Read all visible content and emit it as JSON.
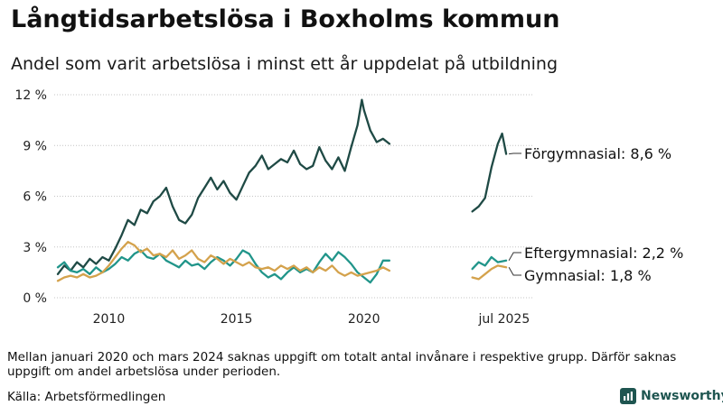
{
  "title": "Långtidsarbetslösa i Boxholms kommun",
  "subtitle": "Andel som varit arbetslösa i minst ett år uppdelat på utbildning",
  "footnote": "Mellan januari 2020 och mars 2024 saknas uppgift om totalt antal invånare i respektive grupp. Därför saknas uppgift om andel arbetslösa under perioden.",
  "source": "Källa: Arbetsförmedlingen",
  "brand": "Newsworthy",
  "colors": {
    "forgymnasial": "#1f4a45",
    "eftergymnasial": "#21958a",
    "gymnasial": "#d4a24c",
    "grid": "#c4c4c4",
    "brand": "#1e5550"
  },
  "chart_data": {
    "type": "line",
    "xlim": [
      2008.0,
      2026.0
    ],
    "ylim": [
      0,
      12
    ],
    "y_ticks": [
      0,
      3,
      6,
      9,
      12
    ],
    "y_tick_labels": [
      "0 %",
      "3 %",
      "6 %",
      "9 %",
      "12 %"
    ],
    "x_ticks": [
      2010,
      2015,
      2020,
      2025.5
    ],
    "x_tick_labels": [
      "2010",
      "2015",
      "2020",
      "jul 2025"
    ],
    "grid": true,
    "legend": "direct labels at right",
    "series": [
      {
        "key": "forgymnasial",
        "label": "Förgymnasial: 8,6 %",
        "segments": [
          [
            [
              2008.0,
              1.4
            ],
            [
              2008.25,
              1.9
            ],
            [
              2008.5,
              1.6
            ],
            [
              2008.75,
              2.1
            ],
            [
              2009.0,
              1.8
            ],
            [
              2009.25,
              2.3
            ],
            [
              2009.5,
              2.0
            ],
            [
              2009.75,
              2.4
            ],
            [
              2010.0,
              2.2
            ],
            [
              2010.25,
              2.9
            ],
            [
              2010.5,
              3.7
            ],
            [
              2010.75,
              4.6
            ],
            [
              2011.0,
              4.3
            ],
            [
              2011.25,
              5.2
            ],
            [
              2011.5,
              5.0
            ],
            [
              2011.75,
              5.7
            ],
            [
              2012.0,
              6.0
            ],
            [
              2012.25,
              6.5
            ],
            [
              2012.5,
              5.4
            ],
            [
              2012.75,
              4.6
            ],
            [
              2013.0,
              4.4
            ],
            [
              2013.25,
              4.9
            ],
            [
              2013.5,
              5.9
            ],
            [
              2013.75,
              6.5
            ],
            [
              2014.0,
              7.1
            ],
            [
              2014.25,
              6.4
            ],
            [
              2014.5,
              6.9
            ],
            [
              2014.75,
              6.2
            ],
            [
              2015.0,
              5.8
            ],
            [
              2015.25,
              6.6
            ],
            [
              2015.5,
              7.4
            ],
            [
              2015.75,
              7.8
            ],
            [
              2016.0,
              8.4
            ],
            [
              2016.25,
              7.6
            ],
            [
              2016.5,
              7.9
            ],
            [
              2016.75,
              8.2
            ],
            [
              2017.0,
              8.0
            ],
            [
              2017.25,
              8.7
            ],
            [
              2017.5,
              7.9
            ],
            [
              2017.75,
              7.6
            ],
            [
              2018.0,
              7.8
            ],
            [
              2018.25,
              8.9
            ],
            [
              2018.5,
              8.1
            ],
            [
              2018.75,
              7.6
            ],
            [
              2019.0,
              8.3
            ],
            [
              2019.25,
              7.5
            ],
            [
              2019.5,
              8.9
            ],
            [
              2019.75,
              10.2
            ],
            [
              2019.92,
              11.7
            ],
            [
              2020.0,
              11.1
            ],
            [
              2020.25,
              9.9
            ],
            [
              2020.5,
              9.2
            ],
            [
              2020.75,
              9.4
            ],
            [
              2021.0,
              9.1
            ]
          ],
          [
            [
              2024.25,
              5.1
            ],
            [
              2024.5,
              5.4
            ],
            [
              2024.75,
              5.9
            ],
            [
              2025.0,
              7.7
            ],
            [
              2025.25,
              9.1
            ],
            [
              2025.42,
              9.7
            ],
            [
              2025.58,
              8.5
            ]
          ]
        ]
      },
      {
        "key": "eftergymnasial",
        "label": "Eftergymnasial: 2,2 %",
        "segments": [
          [
            [
              2008.0,
              1.8
            ],
            [
              2008.25,
              2.1
            ],
            [
              2008.5,
              1.6
            ],
            [
              2008.75,
              1.5
            ],
            [
              2009.0,
              1.7
            ],
            [
              2009.25,
              1.4
            ],
            [
              2009.5,
              1.8
            ],
            [
              2009.75,
              1.5
            ],
            [
              2010.0,
              1.7
            ],
            [
              2010.25,
              2.0
            ],
            [
              2010.5,
              2.4
            ],
            [
              2010.75,
              2.2
            ],
            [
              2011.0,
              2.6
            ],
            [
              2011.25,
              2.8
            ],
            [
              2011.5,
              2.4
            ],
            [
              2011.75,
              2.3
            ],
            [
              2012.0,
              2.6
            ],
            [
              2012.25,
              2.2
            ],
            [
              2012.5,
              2.0
            ],
            [
              2012.75,
              1.8
            ],
            [
              2013.0,
              2.2
            ],
            [
              2013.25,
              1.9
            ],
            [
              2013.5,
              2.0
            ],
            [
              2013.75,
              1.7
            ],
            [
              2014.0,
              2.1
            ],
            [
              2014.25,
              2.4
            ],
            [
              2014.5,
              2.2
            ],
            [
              2014.75,
              1.9
            ],
            [
              2015.0,
              2.3
            ],
            [
              2015.25,
              2.8
            ],
            [
              2015.5,
              2.6
            ],
            [
              2015.75,
              2.0
            ],
            [
              2016.0,
              1.5
            ],
            [
              2016.25,
              1.2
            ],
            [
              2016.5,
              1.4
            ],
            [
              2016.75,
              1.1
            ],
            [
              2017.0,
              1.5
            ],
            [
              2017.25,
              1.8
            ],
            [
              2017.5,
              1.5
            ],
            [
              2017.75,
              1.7
            ],
            [
              2018.0,
              1.5
            ],
            [
              2018.25,
              2.1
            ],
            [
              2018.5,
              2.6
            ],
            [
              2018.75,
              2.2
            ],
            [
              2019.0,
              2.7
            ],
            [
              2019.25,
              2.4
            ],
            [
              2019.5,
              2.0
            ],
            [
              2019.75,
              1.5
            ],
            [
              2020.0,
              1.2
            ],
            [
              2020.25,
              0.9
            ],
            [
              2020.5,
              1.4
            ],
            [
              2020.75,
              2.2
            ],
            [
              2021.0,
              2.2
            ]
          ],
          [
            [
              2024.25,
              1.7
            ],
            [
              2024.5,
              2.1
            ],
            [
              2024.75,
              1.9
            ],
            [
              2025.0,
              2.4
            ],
            [
              2025.25,
              2.1
            ],
            [
              2025.58,
              2.2
            ]
          ]
        ]
      },
      {
        "key": "gymnasial",
        "label": "Gymnasial: 1,8 %",
        "segments": [
          [
            [
              2008.0,
              1.0
            ],
            [
              2008.25,
              1.2
            ],
            [
              2008.5,
              1.3
            ],
            [
              2008.75,
              1.2
            ],
            [
              2009.0,
              1.4
            ],
            [
              2009.25,
              1.2
            ],
            [
              2009.5,
              1.3
            ],
            [
              2009.75,
              1.5
            ],
            [
              2010.0,
              1.9
            ],
            [
              2010.25,
              2.4
            ],
            [
              2010.5,
              2.9
            ],
            [
              2010.75,
              3.3
            ],
            [
              2011.0,
              3.1
            ],
            [
              2011.25,
              2.7
            ],
            [
              2011.5,
              2.9
            ],
            [
              2011.75,
              2.5
            ],
            [
              2012.0,
              2.6
            ],
            [
              2012.25,
              2.4
            ],
            [
              2012.5,
              2.8
            ],
            [
              2012.75,
              2.3
            ],
            [
              2013.0,
              2.5
            ],
            [
              2013.25,
              2.8
            ],
            [
              2013.5,
              2.3
            ],
            [
              2013.75,
              2.1
            ],
            [
              2014.0,
              2.5
            ],
            [
              2014.25,
              2.3
            ],
            [
              2014.5,
              2.0
            ],
            [
              2014.75,
              2.3
            ],
            [
              2015.0,
              2.1
            ],
            [
              2015.25,
              1.9
            ],
            [
              2015.5,
              2.1
            ],
            [
              2015.75,
              1.8
            ],
            [
              2016.0,
              1.7
            ],
            [
              2016.25,
              1.8
            ],
            [
              2016.5,
              1.6
            ],
            [
              2016.75,
              1.9
            ],
            [
              2017.0,
              1.7
            ],
            [
              2017.25,
              1.9
            ],
            [
              2017.5,
              1.6
            ],
            [
              2017.75,
              1.8
            ],
            [
              2018.0,
              1.5
            ],
            [
              2018.25,
              1.8
            ],
            [
              2018.5,
              1.6
            ],
            [
              2018.75,
              1.9
            ],
            [
              2019.0,
              1.5
            ],
            [
              2019.25,
              1.3
            ],
            [
              2019.5,
              1.5
            ],
            [
              2019.75,
              1.3
            ],
            [
              2020.0,
              1.4
            ],
            [
              2020.25,
              1.5
            ],
            [
              2020.5,
              1.6
            ],
            [
              2020.75,
              1.8
            ],
            [
              2021.0,
              1.6
            ]
          ],
          [
            [
              2024.25,
              1.2
            ],
            [
              2024.5,
              1.1
            ],
            [
              2024.75,
              1.4
            ],
            [
              2025.0,
              1.7
            ],
            [
              2025.25,
              1.9
            ],
            [
              2025.58,
              1.8
            ]
          ]
        ]
      }
    ]
  }
}
